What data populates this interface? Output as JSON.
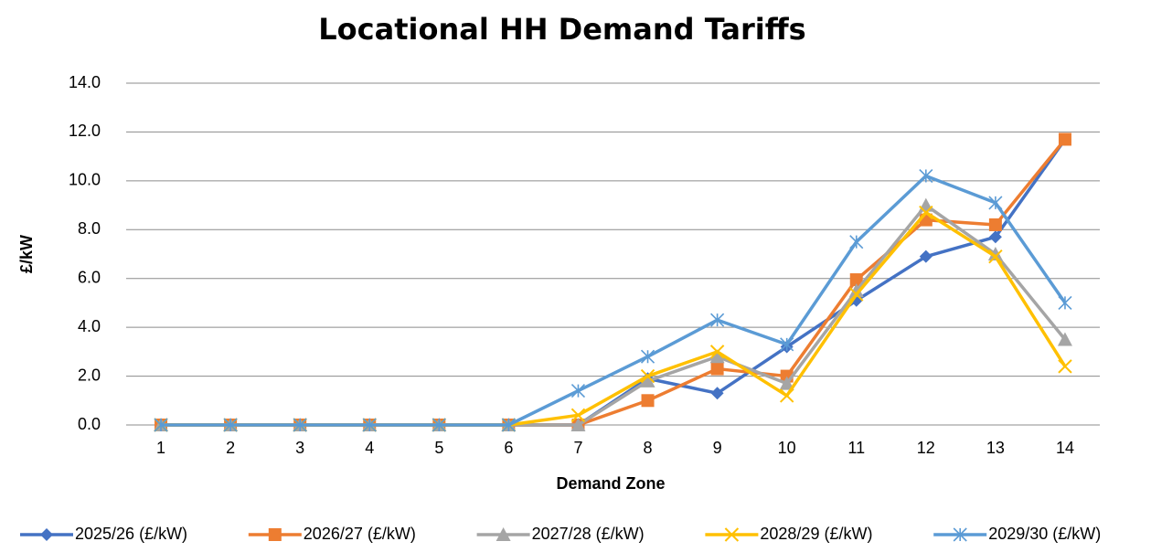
{
  "chart_data": {
    "type": "line",
    "title": "Locational HH Demand Tariffs",
    "x_label": "Demand Zone",
    "y_label": "£/kW",
    "categories": [
      "1",
      "2",
      "3",
      "4",
      "5",
      "6",
      "7",
      "8",
      "9",
      "10",
      "11",
      "12",
      "13",
      "14"
    ],
    "series": [
      {
        "name": "2025/26 (£/kW)",
        "color": "#4472c4",
        "marker": "diamond",
        "values": [
          0,
          0,
          0,
          0,
          0,
          0,
          0,
          1.9,
          1.3,
          3.2,
          5.1,
          6.9,
          7.7,
          11.7
        ]
      },
      {
        "name": "2026/27 (£/kW)",
        "color": "#ed7d31",
        "marker": "square",
        "values": [
          0,
          0,
          0,
          0,
          0,
          0,
          0,
          1.0,
          2.3,
          2.0,
          5.95,
          8.4,
          8.2,
          11.7
        ]
      },
      {
        "name": "2027/28 (£/kW)",
        "color": "#a5a5a5",
        "marker": "triangle",
        "values": [
          0,
          0,
          0,
          0,
          0,
          0,
          0,
          1.8,
          2.8,
          1.7,
          5.5,
          9.0,
          7.0,
          3.5
        ]
      },
      {
        "name": "2028/29 (£/kW)",
        "color": "#ffc000",
        "marker": "x",
        "values": [
          0,
          0,
          0,
          0,
          0,
          0,
          0.4,
          2.0,
          3.0,
          1.2,
          5.35,
          8.7,
          6.9,
          2.4
        ]
      },
      {
        "name": "2029/30 (£/kW)",
        "color": "#5b9bd5",
        "marker": "star",
        "values": [
          0,
          0,
          0,
          0,
          0,
          0,
          1.4,
          2.8,
          4.3,
          3.3,
          7.5,
          10.2,
          9.1,
          5.0
        ]
      }
    ],
    "ylim": [
      0,
      14
    ],
    "yticks": [
      {
        "value": 0,
        "label": "0.0"
      },
      {
        "value": 2,
        "label": "2.0"
      },
      {
        "value": 4,
        "label": "4.0"
      },
      {
        "value": 6,
        "label": "6.0"
      },
      {
        "value": 8,
        "label": "8.0"
      },
      {
        "value": 10,
        "label": "10.0"
      },
      {
        "value": 12,
        "label": "12.0"
      },
      {
        "value": 14,
        "label": "14.0"
      }
    ],
    "grid": true,
    "legend": "bottom"
  }
}
